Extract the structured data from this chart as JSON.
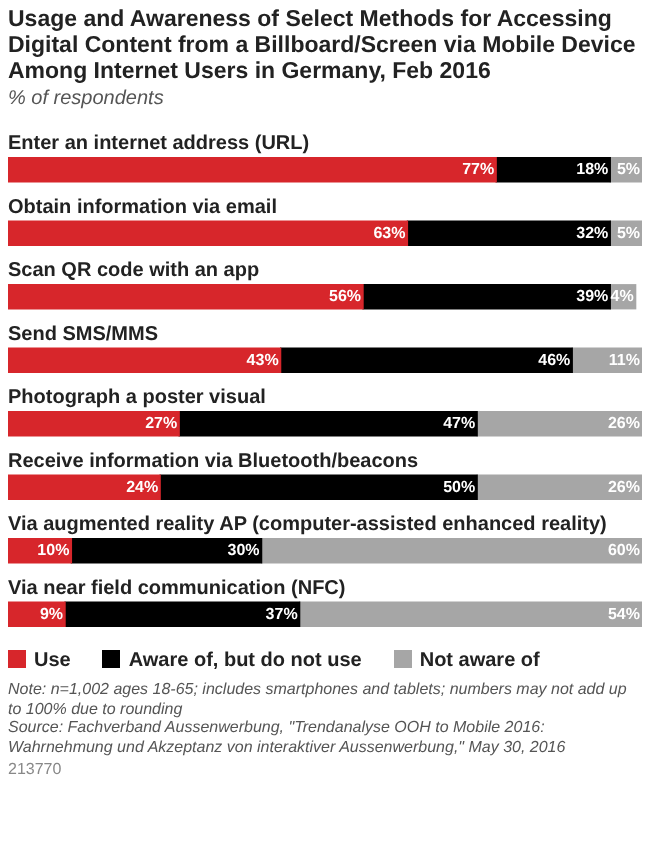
{
  "chart_data": {
    "type": "bar",
    "orientation": "horizontal",
    "stacked": true,
    "title": "Usage and Awareness of Select Methods for Accessing Digital Content from a Billboard/Screen via Mobile Device Among Internet Users in Germany, Feb 2016",
    "subtitle": "% of respondents",
    "categories": [
      "Enter an internet address (URL)",
      "Obtain information via email",
      "Scan QR code with an app",
      "Send SMS/MMS",
      "Photograph a poster visual",
      "Receive information via Bluetooth/beacons",
      "Via augmented reality AP (computer-assisted enhanced reality)",
      "Via near field communication (NFC)"
    ],
    "series": [
      {
        "name": "Use",
        "color": "#d7262b",
        "values": [
          77,
          63,
          56,
          43,
          27,
          24,
          10,
          9
        ],
        "value_labels": [
          "77%",
          "63%",
          "56%",
          "43%",
          "27%",
          "24%",
          "10%",
          "9%"
        ]
      },
      {
        "name": "Aware of, but do not use",
        "color": "#000000",
        "values": [
          18,
          32,
          39,
          46,
          47,
          50,
          30,
          37
        ],
        "value_labels": [
          "18%",
          "32%",
          "39%",
          "46%",
          "47%",
          "50%",
          "30%",
          "37%"
        ]
      },
      {
        "name": "Not aware of",
        "color": "#a6a6a6",
        "values": [
          5,
          5,
          4,
          11,
          26,
          26,
          60,
          54
        ],
        "value_labels": [
          "5%",
          "5%",
          "4%",
          "11%",
          "26%",
          "26%",
          "60%",
          "54%"
        ]
      }
    ],
    "xlim": [
      0,
      100
    ],
    "legend": "bottom",
    "annotations": [
      "Note: n=1,002 ages 18-65; includes smartphones and tablets; numbers may not add up to 100% due to rounding",
      "Source: Fachverband Aussenwerbung, \"Trendanalyse OOH to Mobile 2016: Wahrnehmung und Akzeptanz von interaktiver Aussenwerbung,\" May 30, 2016",
      "213770"
    ]
  }
}
